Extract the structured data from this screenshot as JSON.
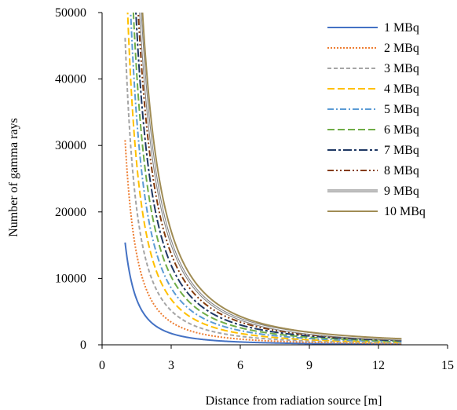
{
  "chart_data": {
    "type": "line",
    "title": "",
    "xlabel": "Distance from radiation source [m]",
    "ylabel": "Number of gamma rays",
    "xlim": [
      0,
      15
    ],
    "ylim": [
      0,
      50000
    ],
    "xticks": [
      0,
      3,
      6,
      9,
      12,
      15
    ],
    "yticks": [
      0,
      10000,
      20000,
      30000,
      40000,
      50000
    ],
    "x_range": [
      1,
      13
    ],
    "grid": false,
    "legend_position": "top-right",
    "series": [
      {
        "name": "1 MBq",
        "coefficient": 15400,
        "color": "#4472c4",
        "dash": "solid"
      },
      {
        "name": "2 MBq",
        "coefficient": 30800,
        "color": "#ed7d31",
        "dash": "dotted"
      },
      {
        "name": "3 MBq",
        "coefficient": 46200,
        "color": "#a5a5a5",
        "dash": "dashed"
      },
      {
        "name": "4 MBq",
        "coefficient": 61600,
        "color": "#ffc000",
        "dash": "longdash"
      },
      {
        "name": "5 MBq",
        "coefficient": 77000,
        "color": "#5b9bd5",
        "dash": "dashdot"
      },
      {
        "name": "6 MBq",
        "coefficient": 92400,
        "color": "#70ad47",
        "dash": "longdash"
      },
      {
        "name": "7 MBq",
        "coefficient": 107800,
        "color": "#1f3864",
        "dash": "longdashdot"
      },
      {
        "name": "8 MBq",
        "coefficient": 123200,
        "color": "#843c0c",
        "dash": "dashdotdot"
      },
      {
        "name": "9 MBq",
        "coefficient": 138600,
        "color": "#7f7f7f",
        "dash": "double"
      },
      {
        "name": "10 MBq",
        "coefficient": 154000,
        "color": "#a08c54",
        "dash": "solid"
      }
    ]
  }
}
